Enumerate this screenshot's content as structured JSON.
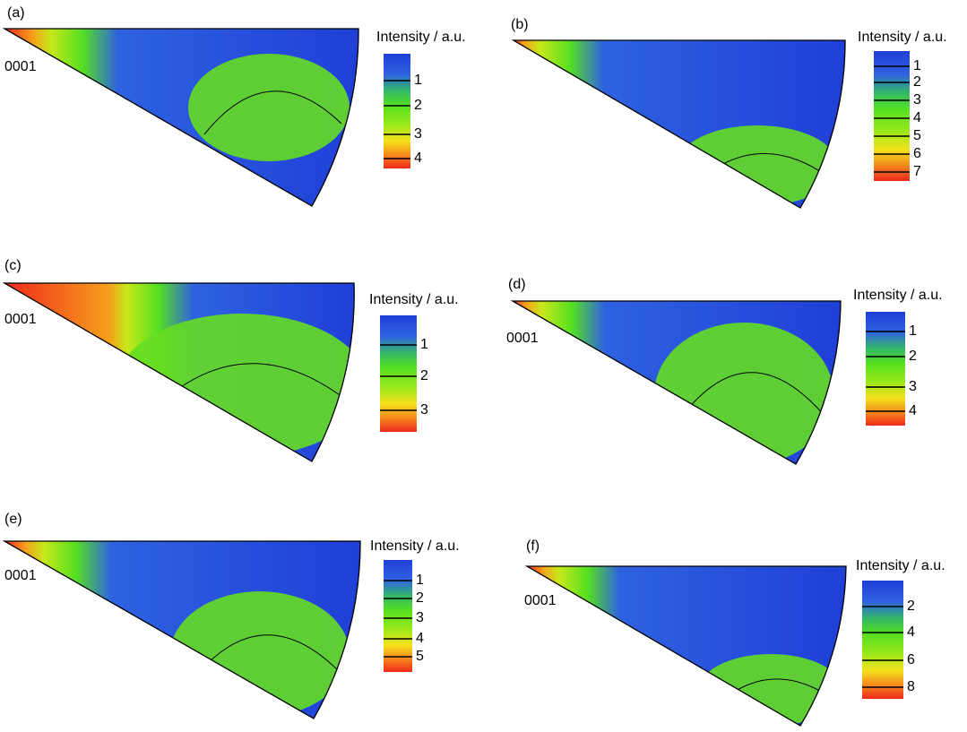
{
  "panels": [
    {
      "label": "(a)",
      "legend_title": "Intensity / a.u.",
      "pole_label": "0001",
      "ticks": [
        1,
        2,
        3,
        4
      ]
    },
    {
      "label": "(b)",
      "legend_title": "Intensity / a.u.",
      "ticks": [
        1,
        2,
        3,
        4,
        5,
        6,
        7
      ]
    },
    {
      "label": "(c)",
      "legend_title": "Intensity / a.u.",
      "pole_label": "0001",
      "ticks": [
        1,
        2,
        3
      ]
    },
    {
      "label": "(d)",
      "legend_title": "Intensity / a.u.",
      "pole_label": "0001",
      "ticks": [
        1,
        2,
        3,
        4
      ]
    },
    {
      "label": "(e)",
      "legend_title": "Intensity / a.u.",
      "pole_label": "0001",
      "ticks": [
        1,
        2,
        3,
        4,
        5
      ]
    },
    {
      "label": "(f)",
      "legend_title": "Intensity / a.u.",
      "pole_label": "0001",
      "ticks": [
        2,
        4,
        6,
        8
      ]
    }
  ]
}
